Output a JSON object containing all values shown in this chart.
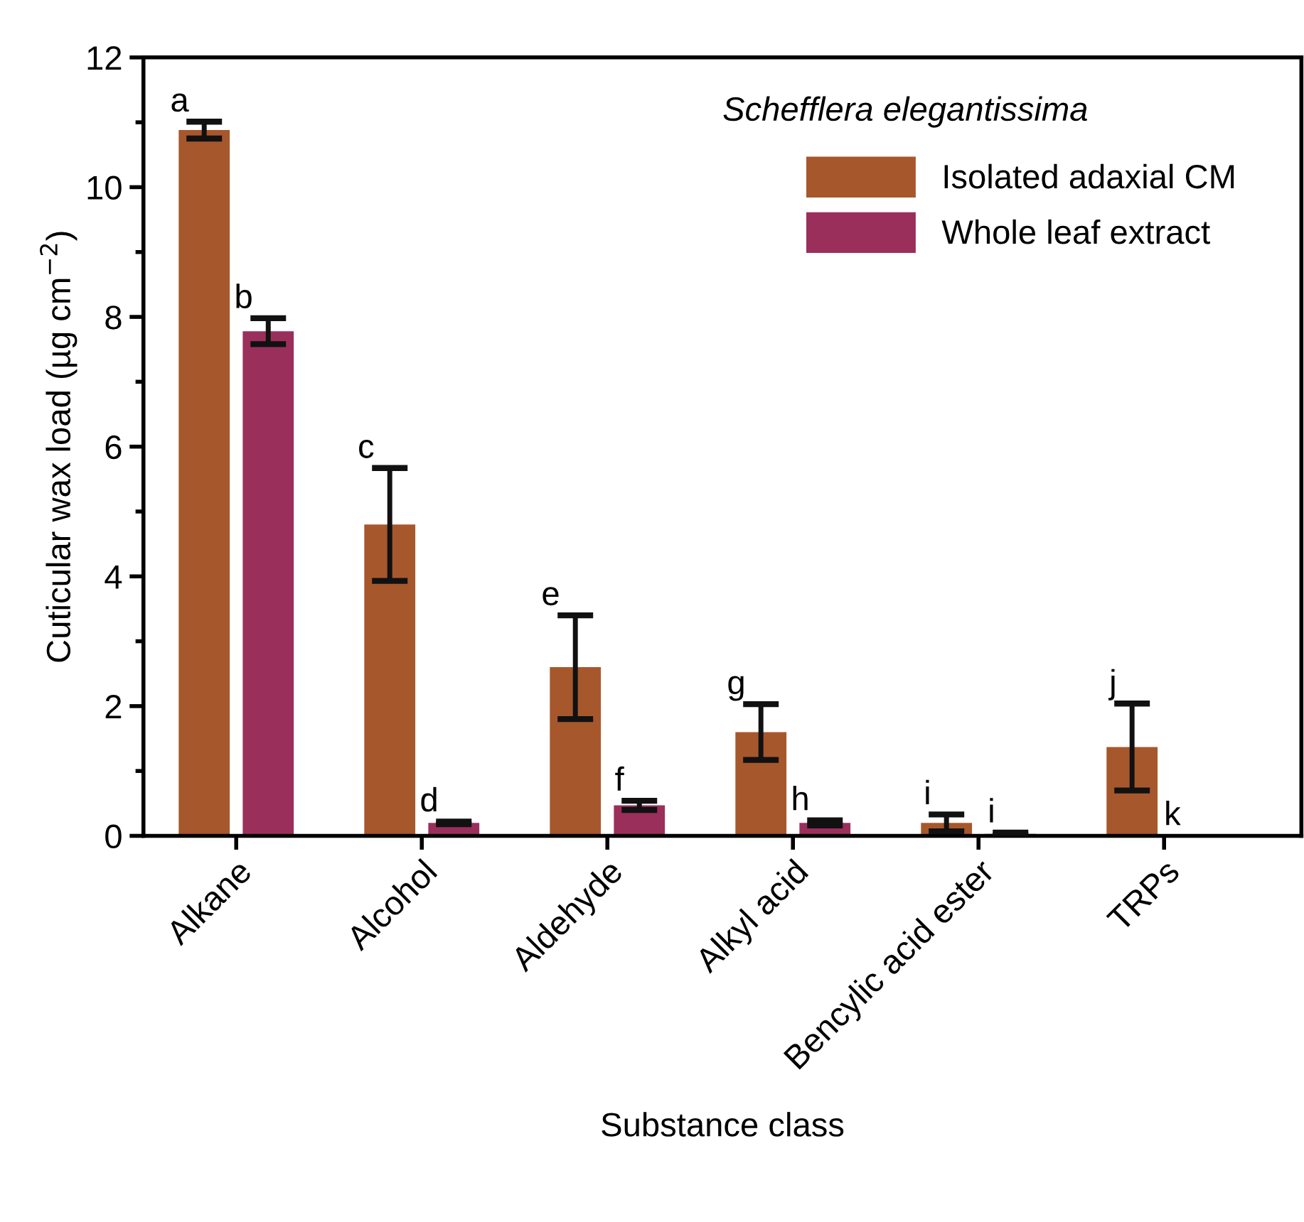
{
  "chart_data": {
    "type": "bar",
    "title": "Schefflera elegantissima",
    "xlabel": "Substance class",
    "ylabel": "Cuticular wax load (µg cm$^{−2}$)",
    "categories": [
      "Alkane",
      "Alcohol",
      "Aldehyde",
      "Alkyl acid",
      "Bencylic acid ester",
      "TRPs"
    ],
    "series": [
      {
        "name": "Isolated adaxial CM",
        "color": "#a7572c",
        "values": [
          10.88,
          4.8,
          2.6,
          1.6,
          0.2,
          1.37
        ],
        "errors": [
          0.13,
          0.87,
          0.8,
          0.43,
          0.13,
          0.67
        ],
        "value_labels": [
          "a",
          "c",
          "e",
          "g",
          "i",
          "j"
        ]
      },
      {
        "name": "Whole leaf extract",
        "color": "#9b2f5c",
        "values": [
          7.78,
          0.2,
          0.47,
          0.2,
          0.03,
          0.01
        ],
        "errors": [
          0.2,
          0.02,
          0.07,
          0.04,
          0.02,
          null
        ],
        "value_labels": [
          "b",
          "d",
          "f",
          "h",
          "i",
          "k"
        ]
      }
    ],
    "ylim": [
      0,
      12
    ],
    "yticks": [
      0,
      2,
      4,
      6,
      8,
      10,
      12
    ],
    "legend": "top right",
    "grid": false
  }
}
